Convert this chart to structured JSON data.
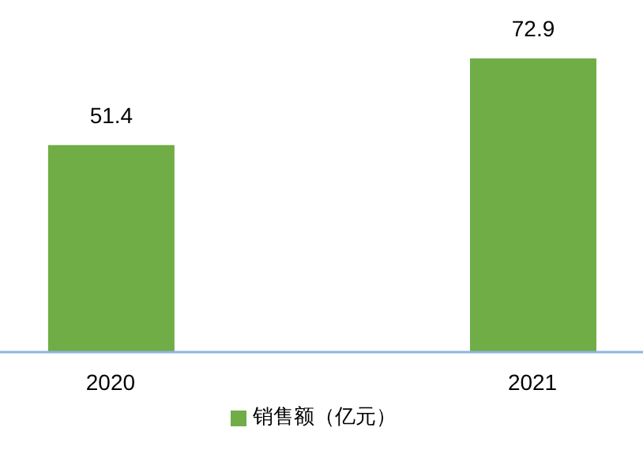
{
  "chart_data": {
    "type": "bar",
    "categories": [
      "2020",
      "2021"
    ],
    "series": [
      {
        "name": "销售额（亿元）",
        "color": "#70ad47",
        "values": [
          51.4,
          72.9
        ]
      }
    ],
    "data_labels": true,
    "legend": "bottom"
  }
}
